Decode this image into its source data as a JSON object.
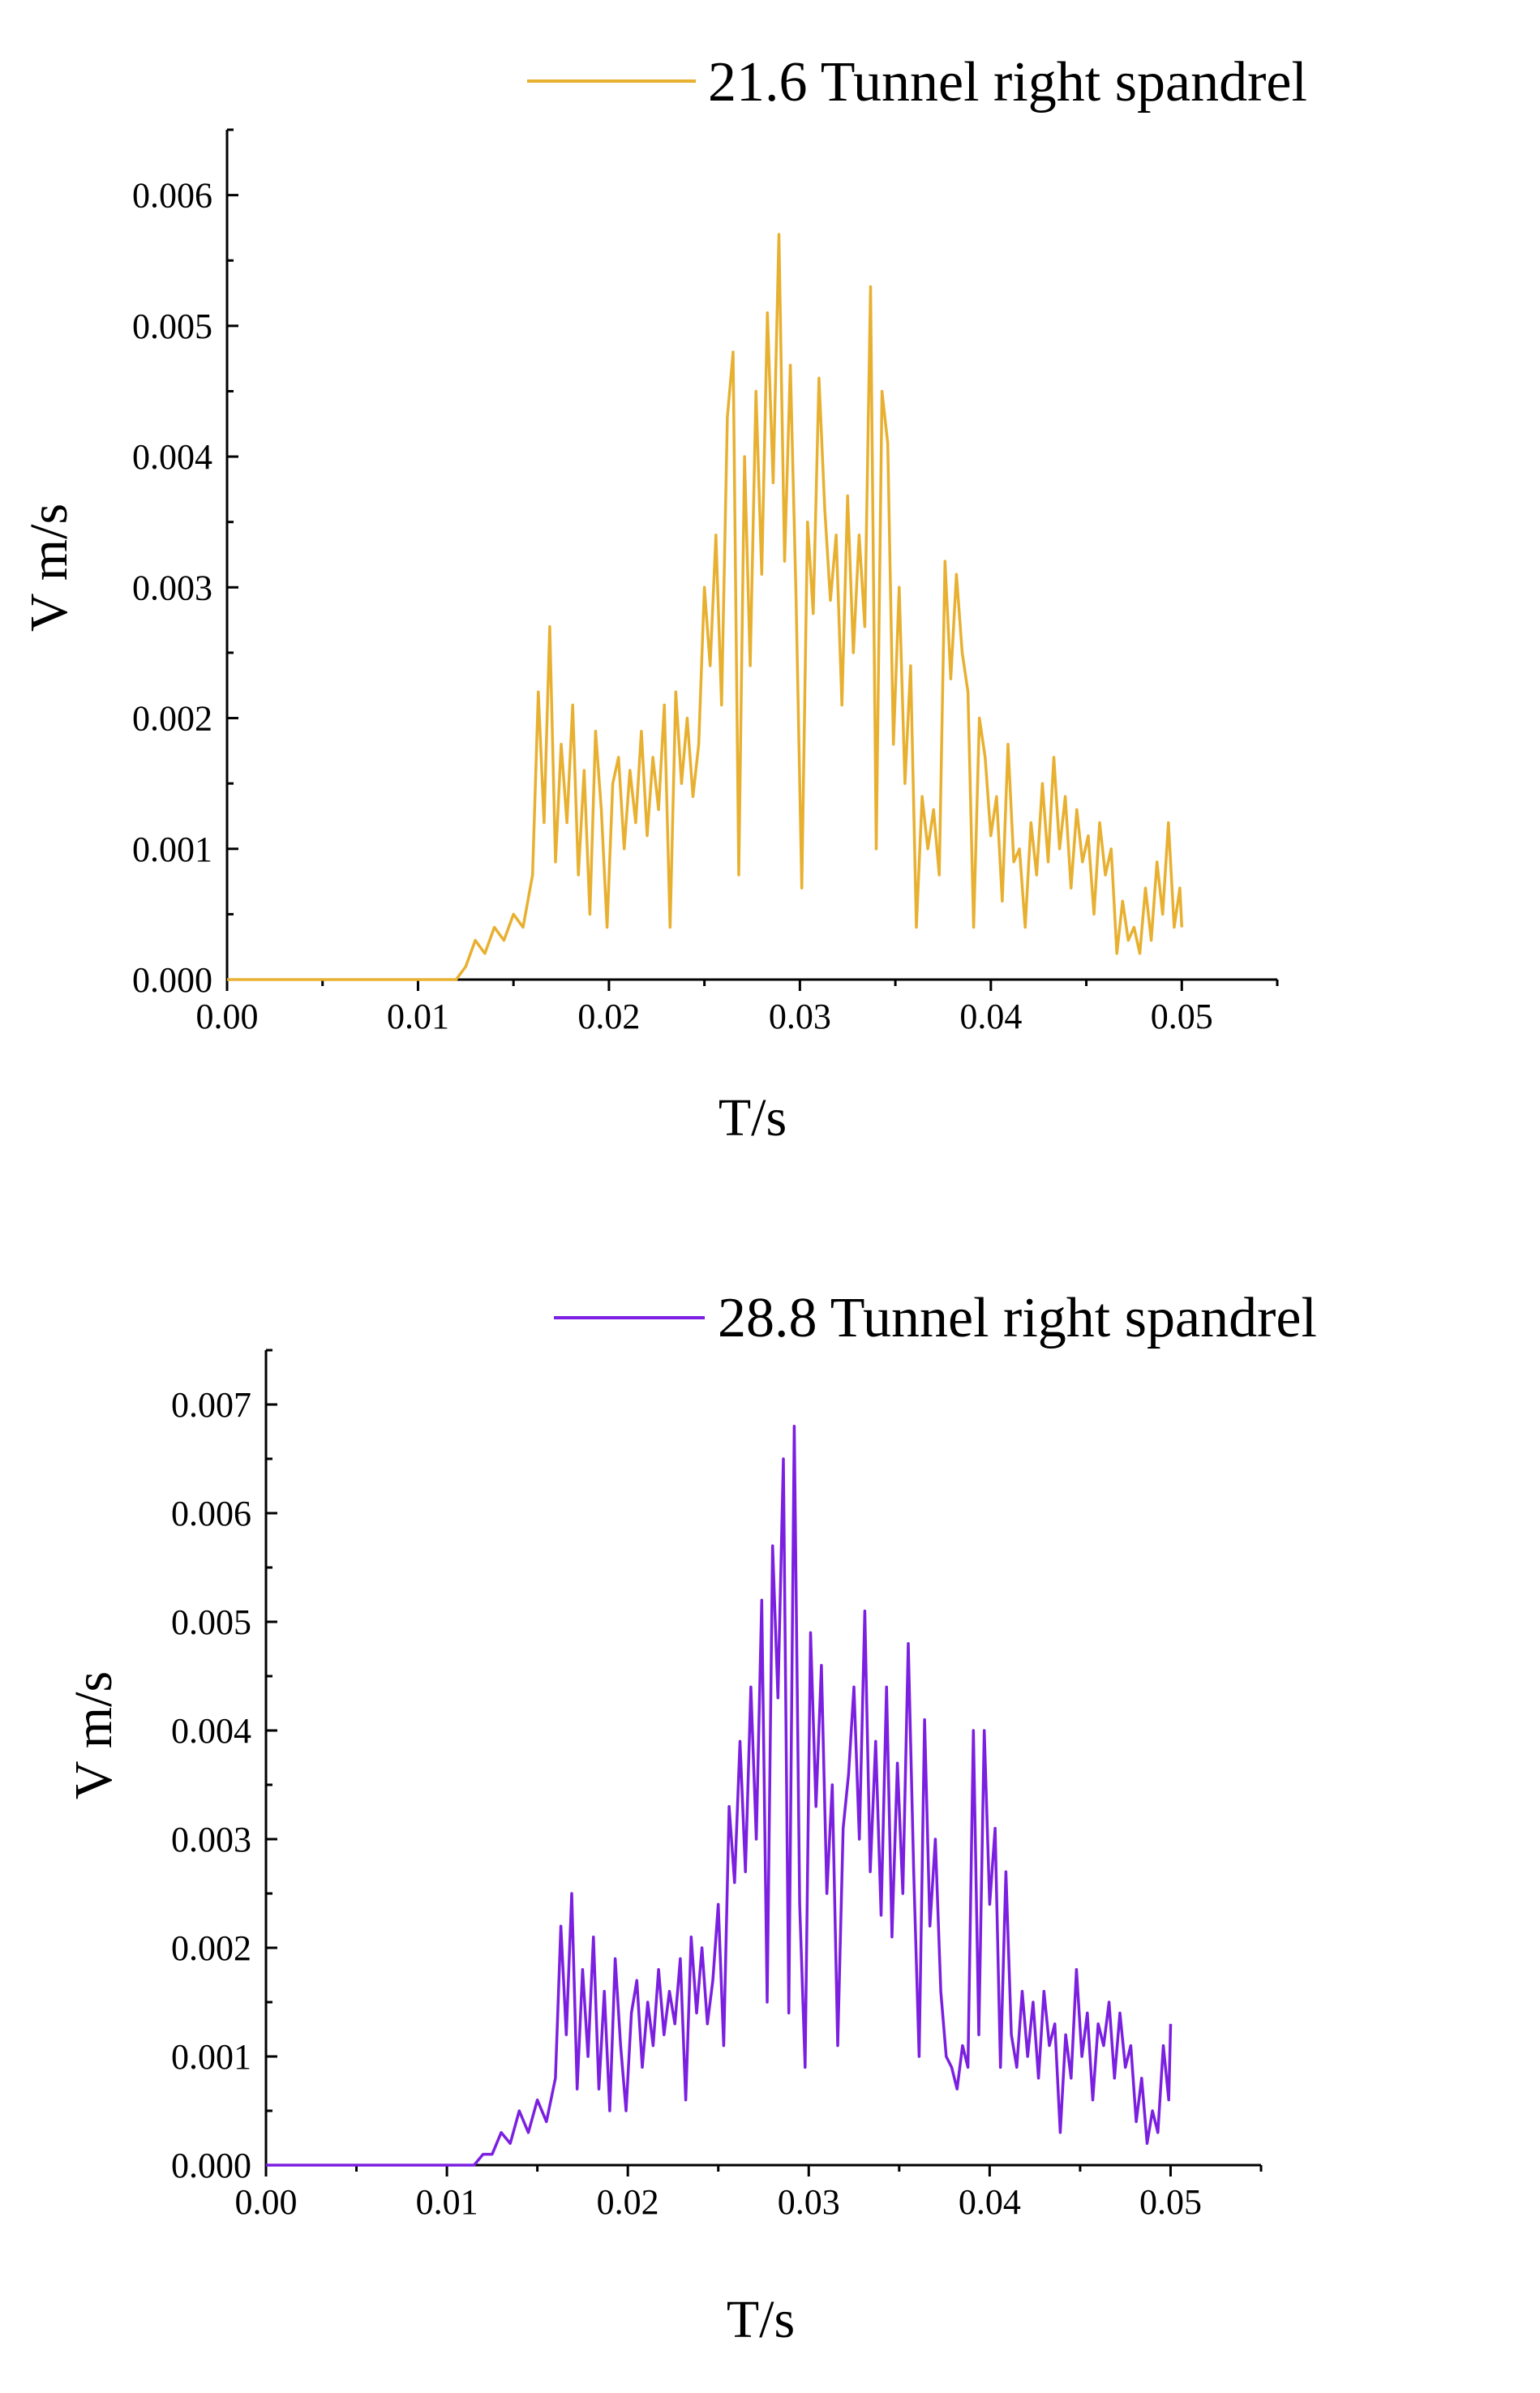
{
  "chart_data": [
    {
      "type": "line",
      "legend": "21.6 Tunnel right spandrel",
      "color": "#E8B030",
      "xlabel": "T/s",
      "ylabel": "V m/s",
      "xlim": [
        0.0,
        0.055
      ],
      "ylim": [
        0.0,
        0.0065
      ],
      "xticks": [
        "0.00",
        "0.01",
        "0.02",
        "0.03",
        "0.04",
        "0.05"
      ],
      "yticks": [
        "0.000",
        "0.001",
        "0.002",
        "0.003",
        "0.004",
        "0.005",
        "0.006"
      ],
      "series": [
        {
          "name": "21.6 Tunnel right spandrel",
          "x": [
            0.0,
            0.012,
            0.0125,
            0.013,
            0.0135,
            0.014,
            0.0145,
            0.015,
            0.0155,
            0.016,
            0.0163,
            0.0166,
            0.0169,
            0.0172,
            0.0175,
            0.0178,
            0.0181,
            0.0184,
            0.0187,
            0.019,
            0.0193,
            0.0196,
            0.0199,
            0.0202,
            0.0205,
            0.0208,
            0.0211,
            0.0214,
            0.0217,
            0.022,
            0.0223,
            0.0226,
            0.0229,
            0.0232,
            0.0235,
            0.0238,
            0.0241,
            0.0244,
            0.0247,
            0.025,
            0.0253,
            0.0256,
            0.0259,
            0.0262,
            0.0265,
            0.0268,
            0.0271,
            0.0274,
            0.0277,
            0.028,
            0.0283,
            0.0286,
            0.0289,
            0.0292,
            0.0295,
            0.0298,
            0.0301,
            0.0304,
            0.0307,
            0.031,
            0.0313,
            0.0316,
            0.0319,
            0.0322,
            0.0325,
            0.0328,
            0.0331,
            0.0334,
            0.0337,
            0.034,
            0.0343,
            0.0346,
            0.0349,
            0.0352,
            0.0355,
            0.0358,
            0.0361,
            0.0364,
            0.0367,
            0.037,
            0.0373,
            0.0376,
            0.0379,
            0.0382,
            0.0385,
            0.0388,
            0.0391,
            0.0394,
            0.0397,
            0.04,
            0.0403,
            0.0406,
            0.0409,
            0.0412,
            0.0415,
            0.0418,
            0.0421,
            0.0424,
            0.0427,
            0.043,
            0.0433,
            0.0436,
            0.0439,
            0.0442,
            0.0445,
            0.0448,
            0.0451,
            0.0454,
            0.0457,
            0.046,
            0.0463,
            0.0466,
            0.0469,
            0.0472,
            0.0475,
            0.0478,
            0.0481,
            0.0484,
            0.0487,
            0.049,
            0.0493,
            0.0496,
            0.0499,
            0.05
          ],
          "y": [
            0.0,
            0.0,
            0.0001,
            0.0003,
            0.0002,
            0.0004,
            0.0003,
            0.0005,
            0.0004,
            0.0008,
            0.0022,
            0.0012,
            0.0027,
            0.0009,
            0.0018,
            0.0012,
            0.0021,
            0.0008,
            0.0016,
            0.0005,
            0.0019,
            0.0013,
            0.0004,
            0.0015,
            0.0017,
            0.001,
            0.0016,
            0.0012,
            0.0019,
            0.0011,
            0.0017,
            0.0013,
            0.0021,
            0.0004,
            0.0022,
            0.0015,
            0.002,
            0.0014,
            0.0018,
            0.003,
            0.0024,
            0.0034,
            0.0021,
            0.0043,
            0.0048,
            0.0008,
            0.004,
            0.0024,
            0.0045,
            0.0031,
            0.0051,
            0.0038,
            0.0057,
            0.0032,
            0.0047,
            0.0029,
            0.0007,
            0.0035,
            0.0028,
            0.0046,
            0.0036,
            0.0029,
            0.0034,
            0.0021,
            0.0037,
            0.0025,
            0.0034,
            0.0027,
            0.0053,
            0.001,
            0.0045,
            0.0041,
            0.0018,
            0.003,
            0.0015,
            0.0024,
            0.0004,
            0.0014,
            0.001,
            0.0013,
            0.0008,
            0.0032,
            0.0023,
            0.0031,
            0.0025,
            0.0022,
            0.0004,
            0.002,
            0.0017,
            0.0011,
            0.0014,
            0.0006,
            0.0018,
            0.0009,
            0.001,
            0.0004,
            0.0012,
            0.0008,
            0.0015,
            0.0009,
            0.0017,
            0.001,
            0.0014,
            0.0007,
            0.0013,
            0.0009,
            0.0011,
            0.0005,
            0.0012,
            0.0008,
            0.001,
            0.0002,
            0.0006,
            0.0003,
            0.0004,
            0.0002,
            0.0007,
            0.0003,
            0.0009,
            0.0005,
            0.0012,
            0.0004,
            0.0007,
            0.0004
          ]
        }
      ]
    },
    {
      "type": "line",
      "legend": "28.8 Tunnel right spandrel",
      "color": "#7B1FE0",
      "xlabel": "T/s",
      "ylabel": "V m/s",
      "xlim": [
        0.0,
        0.055
      ],
      "ylim": [
        0.0,
        0.0075
      ],
      "xticks": [
        "0.00",
        "0.01",
        "0.02",
        "0.03",
        "0.04",
        "0.05"
      ],
      "yticks": [
        "0.000",
        "0.001",
        "0.002",
        "0.003",
        "0.004",
        "0.005",
        "0.006",
        "0.007"
      ],
      "series": [
        {
          "name": "28.8 Tunnel right spandrel",
          "x": [
            0.0,
            0.0115,
            0.012,
            0.0125,
            0.013,
            0.0135,
            0.014,
            0.0145,
            0.015,
            0.0155,
            0.016,
            0.0163,
            0.0166,
            0.0169,
            0.0172,
            0.0175,
            0.0178,
            0.0181,
            0.0184,
            0.0187,
            0.019,
            0.0193,
            0.0196,
            0.0199,
            0.0202,
            0.0205,
            0.0208,
            0.0211,
            0.0214,
            0.0217,
            0.022,
            0.0223,
            0.0226,
            0.0229,
            0.0232,
            0.0235,
            0.0238,
            0.0241,
            0.0244,
            0.0247,
            0.025,
            0.0253,
            0.0256,
            0.0259,
            0.0262,
            0.0265,
            0.0268,
            0.0271,
            0.0274,
            0.0277,
            0.028,
            0.0283,
            0.0286,
            0.0289,
            0.0292,
            0.0295,
            0.0298,
            0.0301,
            0.0304,
            0.0307,
            0.031,
            0.0313,
            0.0316,
            0.0319,
            0.0322,
            0.0325,
            0.0328,
            0.0331,
            0.0334,
            0.0337,
            0.034,
            0.0343,
            0.0346,
            0.0349,
            0.0352,
            0.0355,
            0.0358,
            0.0361,
            0.0364,
            0.0367,
            0.037,
            0.0373,
            0.0376,
            0.0379,
            0.0382,
            0.0385,
            0.0388,
            0.0391,
            0.0394,
            0.0397,
            0.04,
            0.0403,
            0.0406,
            0.0409,
            0.0412,
            0.0415,
            0.0418,
            0.0421,
            0.0424,
            0.0427,
            0.043,
            0.0433,
            0.0436,
            0.0439,
            0.0442,
            0.0445,
            0.0448,
            0.0451,
            0.0454,
            0.0457,
            0.046,
            0.0463,
            0.0466,
            0.0469,
            0.0472,
            0.0475,
            0.0478,
            0.0481,
            0.0484,
            0.0487,
            0.049,
            0.0493,
            0.0496,
            0.0499,
            0.05
          ],
          "y": [
            0.0,
            0.0,
            0.0001,
            0.0001,
            0.0003,
            0.0002,
            0.0005,
            0.0003,
            0.0006,
            0.0004,
            0.0008,
            0.0022,
            0.0012,
            0.0025,
            0.0007,
            0.0018,
            0.001,
            0.0021,
            0.0007,
            0.0016,
            0.0005,
            0.0019,
            0.0011,
            0.0005,
            0.0014,
            0.0017,
            0.0009,
            0.0015,
            0.0011,
            0.0018,
            0.0012,
            0.0016,
            0.0013,
            0.0019,
            0.0006,
            0.0021,
            0.0014,
            0.002,
            0.0013,
            0.0017,
            0.0024,
            0.0011,
            0.0033,
            0.0026,
            0.0039,
            0.0027,
            0.0044,
            0.003,
            0.0052,
            0.0015,
            0.0057,
            0.0043,
            0.0065,
            0.0014,
            0.0068,
            0.0024,
            0.0009,
            0.0049,
            0.0033,
            0.0046,
            0.0025,
            0.0035,
            0.0011,
            0.0031,
            0.0036,
            0.0044,
            0.003,
            0.0051,
            0.0027,
            0.0039,
            0.0023,
            0.0044,
            0.0021,
            0.0037,
            0.0025,
            0.0048,
            0.0027,
            0.001,
            0.0041,
            0.0022,
            0.003,
            0.0016,
            0.001,
            0.0009,
            0.0007,
            0.0011,
            0.0009,
            0.004,
            0.0012,
            0.004,
            0.0024,
            0.0031,
            0.0009,
            0.0027,
            0.0012,
            0.0009,
            0.0016,
            0.001,
            0.0015,
            0.0008,
            0.0016,
            0.0011,
            0.0013,
            0.0003,
            0.0012,
            0.0008,
            0.0018,
            0.001,
            0.0014,
            0.0006,
            0.0013,
            0.0011,
            0.0015,
            0.0008,
            0.0014,
            0.0009,
            0.0011,
            0.0004,
            0.0008,
            0.0002,
            0.0005,
            0.0003,
            0.0011,
            0.0006,
            0.0013
          ]
        }
      ]
    }
  ]
}
